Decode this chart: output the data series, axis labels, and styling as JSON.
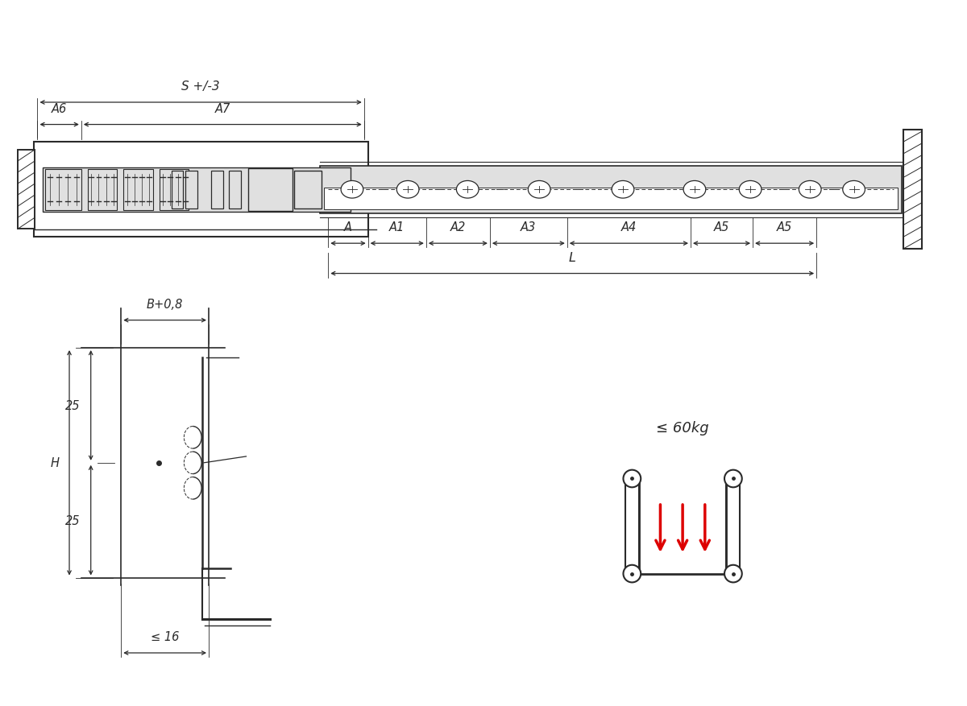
{
  "bg_color": "#ffffff",
  "line_color": "#2a2a2a",
  "gray_fill": "#c8c8c8",
  "light_gray": "#e0e0e0",
  "red_color": "#dd0000",
  "top_view": {
    "labels_S": "S +/-3",
    "label_A6": "A6",
    "label_A7": "A7",
    "label_A": "A",
    "label_A1": "A1",
    "label_A2": "A2",
    "label_A3": "A3",
    "label_A4": "A4",
    "label_A5a": "A5",
    "label_A5b": "A5",
    "label_L": "L"
  },
  "side_view": {
    "label_B": "B+0,8",
    "label_H": "H",
    "label_25a": "25",
    "label_25b": "25",
    "label_16": "≤ 16"
  },
  "load_icon": {
    "label": "≤ 60kg"
  },
  "font_size_dim": 10.5
}
